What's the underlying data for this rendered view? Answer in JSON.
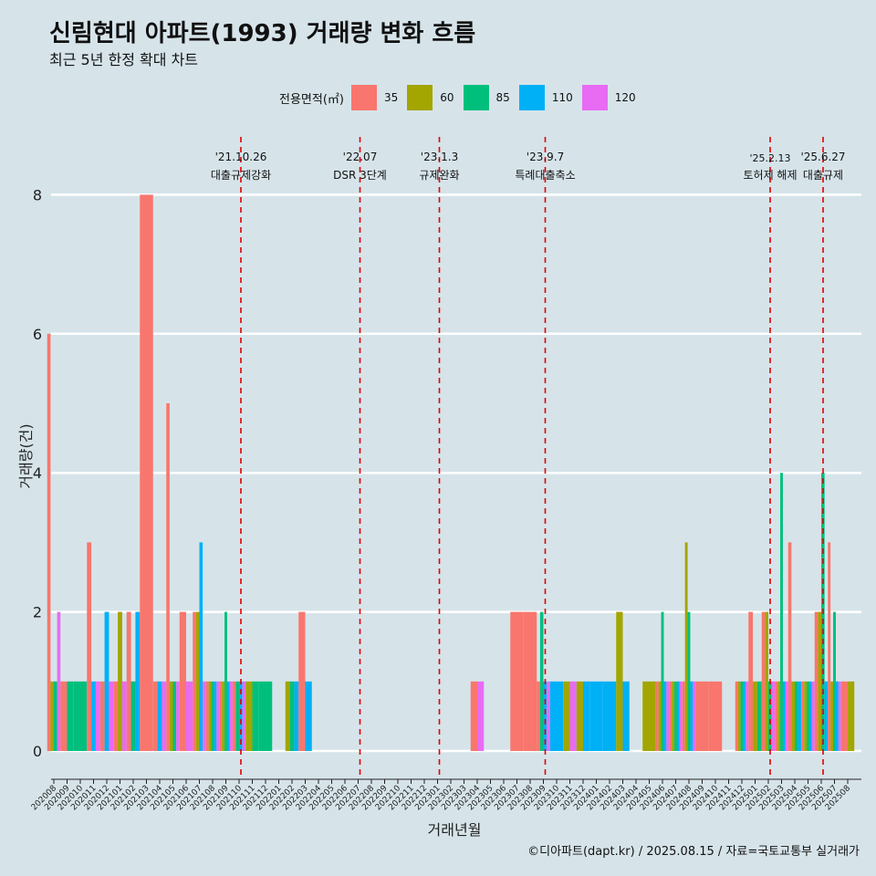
{
  "title": "신림현대 아파트(1993) 거래량 변화 흐름",
  "subtitle": "최근 5년 한정 확대 차트",
  "legend": {
    "title": "전용면적(㎡)",
    "items": [
      {
        "label": "35",
        "color": "#F8766D"
      },
      {
        "label": "60",
        "color": "#A3A500"
      },
      {
        "label": "85",
        "color": "#00BF7D"
      },
      {
        "label": "110",
        "color": "#00B0F6"
      },
      {
        "label": "120",
        "color": "#E76BF3"
      }
    ]
  },
  "footer": "©디아파트(dapt.kr) / 2025.08.15 / 자료=국토교통부 실거래가",
  "chart_data": {
    "type": "bar",
    "xlabel": "거래년월",
    "ylabel": "거래량(건)",
    "ylim": [
      0,
      8
    ],
    "yticks": [
      0,
      2,
      4,
      6,
      8
    ],
    "grid": true,
    "legend_position": "top",
    "months": [
      "202008",
      "202009",
      "202010",
      "202011",
      "202012",
      "202101",
      "202102",
      "202103",
      "202104",
      "202105",
      "202106",
      "202107",
      "202108",
      "202109",
      "202110",
      "202111",
      "202112",
      "202201",
      "202202",
      "202203",
      "202204",
      "202205",
      "202206",
      "202207",
      "202208",
      "202209",
      "202210",
      "202211",
      "202212",
      "202301",
      "202302",
      "202303",
      "202304",
      "202305",
      "202306",
      "202307",
      "202308",
      "202309",
      "202310",
      "202311",
      "202312",
      "202401",
      "202402",
      "202403",
      "202404",
      "202405",
      "202406",
      "202407",
      "202408",
      "202409",
      "202410",
      "202411",
      "202412",
      "202501",
      "202502",
      "202503",
      "202504",
      "202505",
      "202506",
      "202507",
      "202508"
    ],
    "series": [
      {
        "name": "35",
        "values": [
          6,
          1,
          0,
          3,
          1,
          1,
          2,
          8,
          1,
          5,
          2,
          2,
          1,
          1,
          1,
          0,
          0,
          0,
          0,
          2,
          0,
          0,
          0,
          0,
          0,
          0,
          0,
          0,
          0,
          0,
          0,
          0,
          1,
          0,
          0,
          2,
          2,
          1,
          0,
          0,
          0,
          0,
          0,
          0,
          0,
          0,
          1,
          1,
          1,
          1,
          1,
          0,
          1,
          2,
          2,
          1,
          3,
          1,
          2,
          3,
          1
        ]
      },
      {
        "name": "60",
        "values": [
          1,
          0,
          0,
          0,
          0,
          2,
          0,
          0,
          0,
          1,
          0,
          2,
          1,
          1,
          0,
          1,
          0,
          0,
          1,
          0,
          0,
          0,
          0,
          0,
          0,
          0,
          0,
          0,
          0,
          0,
          0,
          0,
          0,
          0,
          0,
          0,
          0,
          0,
          0,
          1,
          1,
          0,
          0,
          2,
          0,
          1,
          1,
          1,
          3,
          0,
          0,
          0,
          1,
          1,
          2,
          1,
          1,
          1,
          2,
          1,
          1
        ]
      },
      {
        "name": "85",
        "values": [
          1,
          1,
          1,
          0,
          0,
          0,
          1,
          0,
          0,
          1,
          0,
          0,
          1,
          2,
          1,
          1,
          1,
          0,
          1,
          0,
          0,
          0,
          0,
          0,
          0,
          0,
          0,
          0,
          0,
          0,
          0,
          0,
          0,
          0,
          0,
          0,
          0,
          2,
          0,
          0,
          0,
          0,
          0,
          0,
          0,
          0,
          2,
          1,
          2,
          0,
          0,
          0,
          1,
          1,
          1,
          4,
          1,
          1,
          4,
          2,
          0
        ]
      },
      {
        "name": "110",
        "values": [
          0,
          0,
          0,
          1,
          2,
          0,
          2,
          0,
          1,
          0,
          0,
          3,
          1,
          1,
          1,
          0,
          0,
          0,
          1,
          1,
          0,
          0,
          0,
          0,
          0,
          0,
          0,
          0,
          0,
          0,
          0,
          0,
          0,
          0,
          0,
          0,
          0,
          1,
          1,
          0,
          1,
          1,
          1,
          1,
          0,
          0,
          1,
          1,
          1,
          0,
          0,
          0,
          1,
          0,
          0,
          1,
          1,
          1,
          1,
          1,
          0
        ]
      },
      {
        "name": "120",
        "values": [
          2,
          0,
          0,
          1,
          1,
          1,
          0,
          0,
          1,
          1,
          1,
          1,
          1,
          1,
          1,
          0,
          0,
          0,
          0,
          0,
          0,
          0,
          0,
          0,
          0,
          0,
          0,
          0,
          0,
          0,
          0,
          0,
          1,
          0,
          0,
          0,
          0,
          1,
          0,
          1,
          0,
          0,
          0,
          0,
          0,
          0,
          1,
          1,
          1,
          0,
          0,
          0,
          1,
          0,
          1,
          1,
          0,
          1,
          0,
          1,
          0
        ]
      }
    ],
    "annotations": [
      {
        "month": "202110",
        "date": "'21.10.26",
        "text": "대출규제강화"
      },
      {
        "month": "202207",
        "date": "'22.07",
        "text": "DSR 3단계"
      },
      {
        "month": "202301",
        "date": "'23.1.3",
        "text": "규제완화"
      },
      {
        "month": "202309",
        "date": "'23.9.7",
        "text": "특례대출축소"
      },
      {
        "month": "202502",
        "date": "'25.2.13",
        "text": "토허제 해제"
      },
      {
        "month": "202506",
        "date": "'25.6.27",
        "text": "대출규제"
      }
    ]
  }
}
